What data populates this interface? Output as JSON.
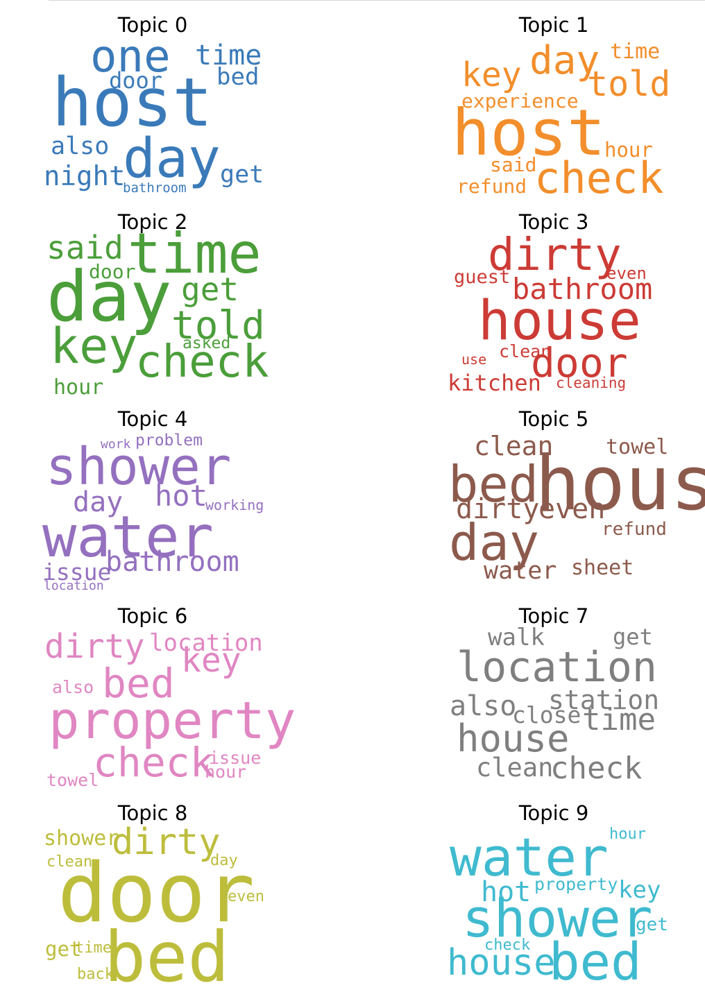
{
  "chart_data": [
    {
      "type": "wordcloud",
      "title": "Topic 0",
      "color": "#3a7ab9",
      "words": [
        "host",
        "day",
        "one",
        "time",
        "bed",
        "door",
        "also",
        "night",
        "get",
        "bathroom"
      ]
    },
    {
      "type": "wordcloud",
      "title": "Topic 1",
      "color": "#f28e2b",
      "words": [
        "host",
        "check",
        "day",
        "key",
        "told",
        "time",
        "experience",
        "hour",
        "said",
        "refund"
      ]
    },
    {
      "type": "wordcloud",
      "title": "Topic 2",
      "color": "#4b9e3a",
      "words": [
        "day",
        "time",
        "key",
        "check",
        "told",
        "get",
        "said",
        "door",
        "asked",
        "hour"
      ]
    },
    {
      "type": "wordcloud",
      "title": "Topic 3",
      "color": "#cc3b35",
      "words": [
        "house",
        "dirty",
        "door",
        "bathroom",
        "kitchen",
        "guest",
        "even",
        "clean",
        "use",
        "cleaning"
      ]
    },
    {
      "type": "wordcloud",
      "title": "Topic 4",
      "color": "#9470bf",
      "words": [
        "water",
        "shower",
        "bathroom",
        "hot",
        "day",
        "issue",
        "problem",
        "work",
        "working",
        "location"
      ]
    },
    {
      "type": "wordcloud",
      "title": "Topic 5",
      "color": "#8c5a4c",
      "words": [
        "day",
        "house",
        "bed",
        "dirty",
        "even",
        "clean",
        "towel",
        "water",
        "sheet",
        "refund"
      ]
    },
    {
      "type": "wordcloud",
      "title": "Topic 6",
      "color": "#e086c2",
      "words": [
        "property",
        "check",
        "bed",
        "key",
        "dirty",
        "location",
        "also",
        "issue",
        "hour",
        "towel"
      ]
    },
    {
      "type": "wordcloud",
      "title": "Topic 7",
      "color": "#7f7f7f",
      "words": [
        "location",
        "house",
        "time",
        "check",
        "station",
        "also",
        "close",
        "clean",
        "walk",
        "get"
      ]
    },
    {
      "type": "wordcloud",
      "title": "Topic 8",
      "color": "#bdbd3c",
      "words": [
        "door",
        "bed",
        "dirty",
        "shower",
        "day",
        "clean",
        "even",
        "get",
        "time",
        "back"
      ]
    },
    {
      "type": "wordcloud",
      "title": "Topic 9",
      "color": "#3fbacf",
      "words": [
        "water",
        "shower",
        "bed",
        "house",
        "hot",
        "key",
        "property",
        "get",
        "check",
        "hour"
      ]
    }
  ]
}
